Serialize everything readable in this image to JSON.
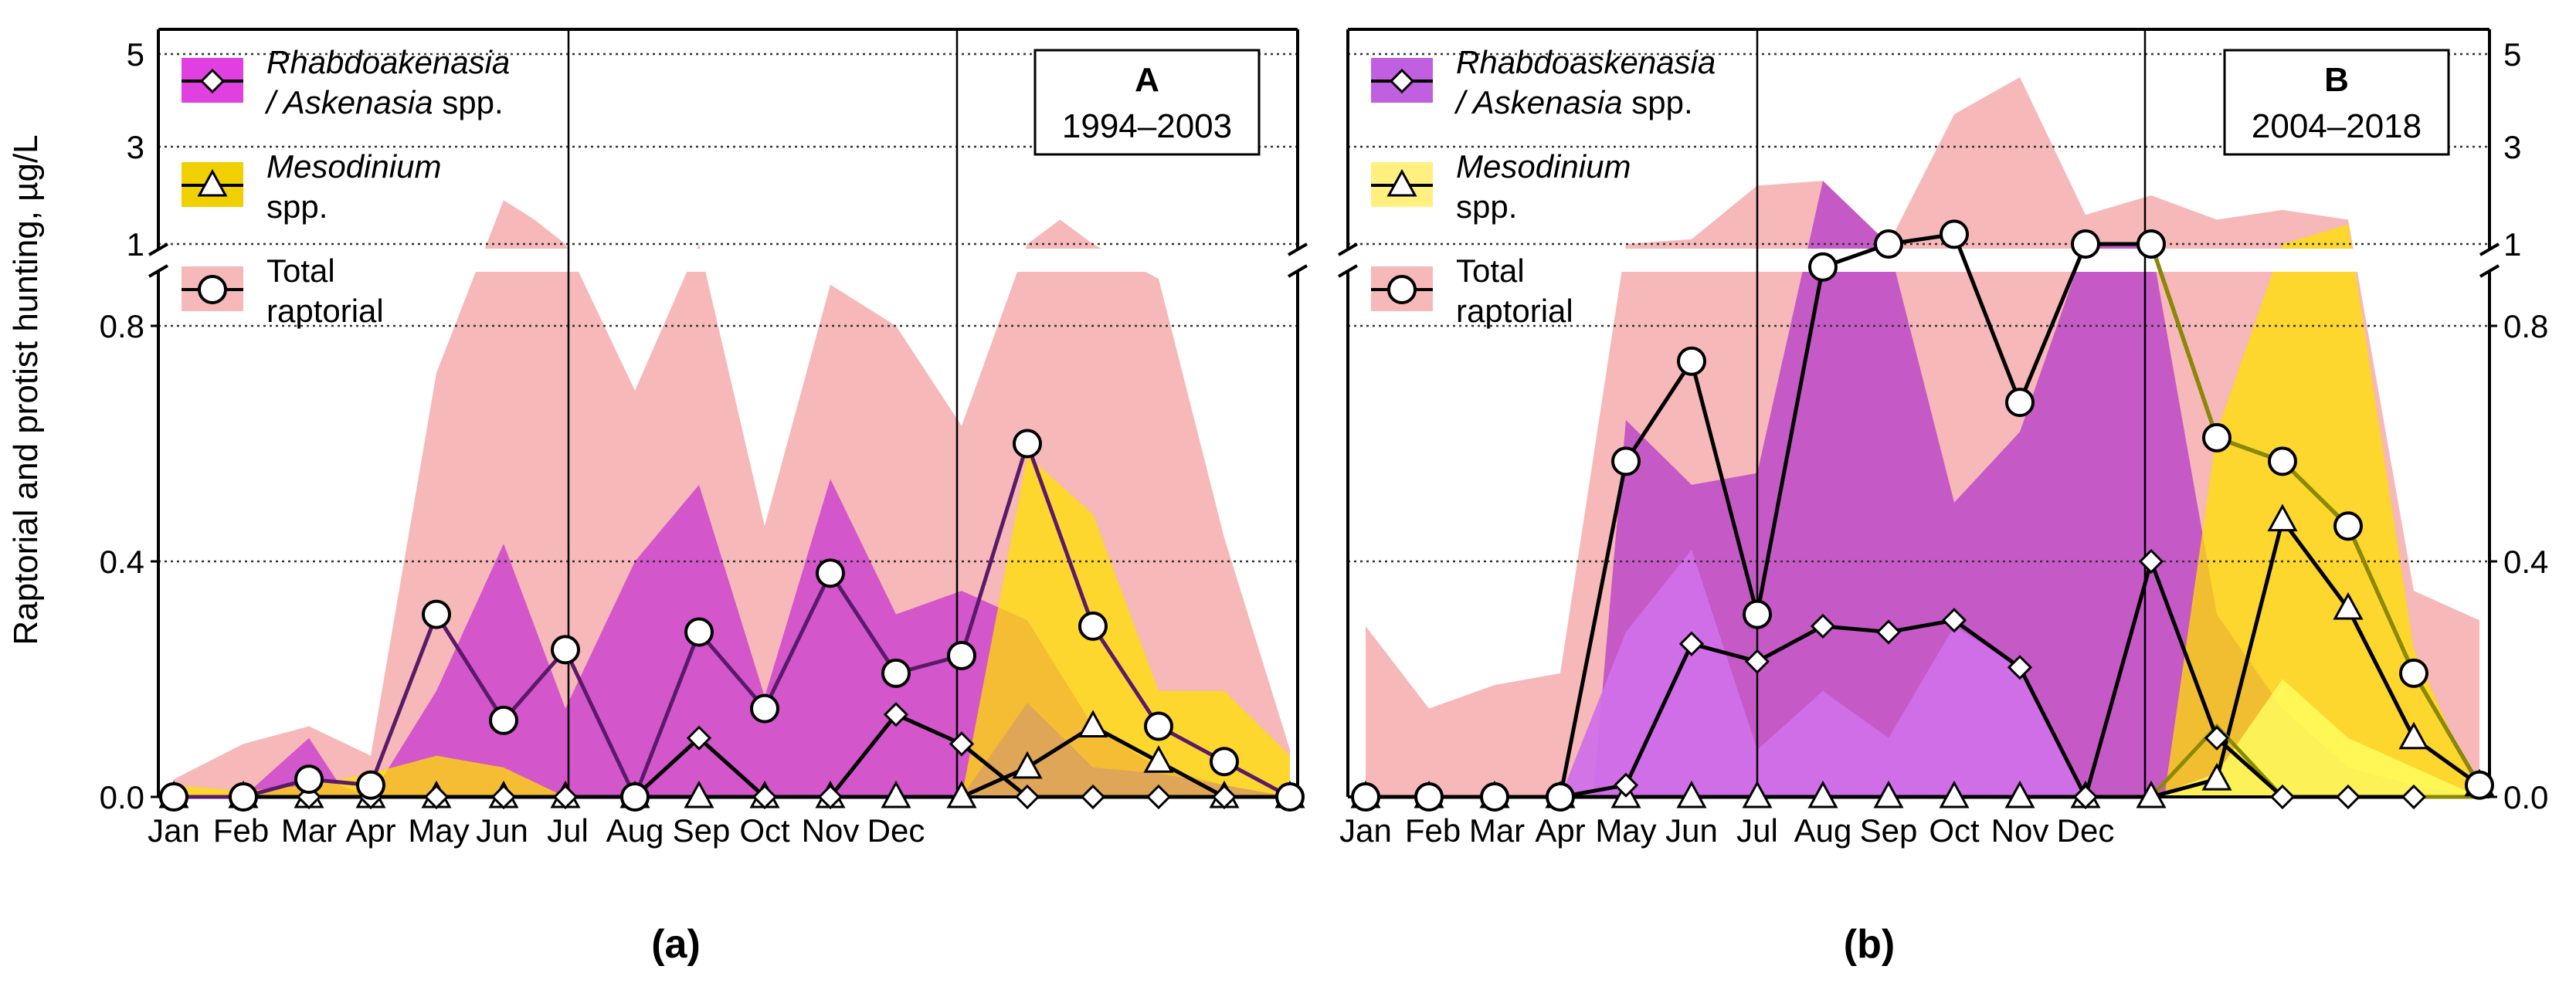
{
  "figure": {
    "ylabel": "Raptorial and protist hunting, µg/L"
  },
  "colors": {
    "total_fill": "#f6b8b8",
    "rhabdo_fill_a": "#cc44cc",
    "rhabdo_fill_b_range": "#d070e8",
    "rhabdo_fill_b_mean": "#c050c8",
    "meso_fill": "#ffe000",
    "meso_fill_b_inner": "#ffff60",
    "total_line": "#000000",
    "rhabdo_line_a": "#5a1a6a",
    "meso_line_b": "#8a8a00"
  },
  "chart_data": [
    {
      "type": "area",
      "panel_label": "(a)",
      "box_title": "A",
      "box_subtitle": "1994–2003",
      "legend": [
        {
          "label_italic": "Rhabdoakenasia",
          "label_rest": "",
          "label_line2_italic": "/ Askenasia",
          "label_line2_rest": " spp.",
          "marker": "diamond",
          "swatch": "magenta"
        },
        {
          "label_italic": "Mesodinium",
          "label_rest": "",
          "label_line2_italic": "",
          "label_line2_rest": "spp.",
          "marker": "triangle",
          "swatch": "yellow"
        },
        {
          "label_italic": "",
          "label_rest": "Total",
          "label_line2_italic": "",
          "label_line2_rest": "raptorial",
          "marker": "circle",
          "swatch": "pink"
        }
      ],
      "x_ticks": [
        "Jan",
        "Feb",
        "Mar",
        "Apr",
        "May",
        "Jun",
        "Jul",
        "Aug",
        "Sep",
        "Oct",
        "Nov",
        "Dec"
      ],
      "y_ticks_lower": [
        "0.0",
        "0.4",
        "0.8"
      ],
      "y_ticks_upper": [
        "1",
        "3",
        "5"
      ],
      "ylim_lower": [
        0,
        0.95
      ],
      "ylim_upper": [
        1,
        5.4
      ],
      "season_lines_x": [
        6.0,
        12.0
      ],
      "total_band": {
        "x": [
          0,
          1,
          2,
          3,
          4,
          5,
          5.5,
          6,
          7,
          8,
          9,
          10,
          11,
          12,
          13,
          13.5,
          14,
          15,
          16,
          17
        ],
        "y": [
          0.03,
          0.09,
          0.12,
          0.07,
          0.72,
          1.9,
          1.5,
          1.0,
          0.69,
          1.0,
          0.46,
          0.87,
          0.8,
          0.63,
          1.0,
          1.5,
          1.0,
          0.88,
          0.44,
          0.08
        ]
      },
      "rhabdo_band": {
        "x": [
          0,
          1,
          2,
          2.5,
          3,
          4,
          5,
          6,
          7,
          8,
          9,
          10,
          11,
          12,
          13,
          14,
          15,
          16,
          17
        ],
        "y": [
          0,
          0,
          0.1,
          0.02,
          0,
          0.18,
          0.43,
          0.15,
          0.4,
          0.53,
          0.17,
          0.54,
          0.31,
          0.35,
          0.3,
          0.12,
          0.05,
          0.02,
          0
        ]
      },
      "meso_band": {
        "x": [
          0,
          1,
          2,
          3,
          4,
          5,
          6,
          7,
          8,
          9,
          10,
          11,
          12,
          13,
          14,
          15,
          16,
          17
        ],
        "y": [
          0.02,
          0.01,
          0.02,
          0.04,
          0.07,
          0.05,
          0,
          0,
          0,
          0,
          0,
          0,
          0,
          0.58,
          0.48,
          0.18,
          0.18,
          0.07
        ]
      },
      "meso_band_inner": {
        "x": [
          12,
          13,
          14,
          15,
          16,
          17
        ],
        "y": [
          0,
          0.16,
          0.05,
          0.04,
          0.02,
          0
        ]
      },
      "total_series": {
        "x": [
          0,
          1,
          2,
          3,
          4,
          5,
          6,
          7,
          8,
          9,
          10,
          11,
          12,
          13,
          14,
          15,
          16,
          17
        ],
        "y": [
          0,
          0,
          0.03,
          0.02,
          0.31,
          0.13,
          0.25,
          0,
          0.28,
          0.15,
          0.38,
          0.21,
          0.24,
          0.6,
          0.29,
          0.12,
          0.06,
          0
        ]
      },
      "rhabdo_series": {
        "x": [
          0,
          1,
          2,
          3,
          4,
          5,
          6,
          7,
          8,
          9,
          10,
          11,
          12,
          13,
          14,
          15,
          16,
          17
        ],
        "y": [
          0,
          0,
          0,
          0,
          0,
          0,
          0,
          0,
          0.1,
          0,
          0,
          0.14,
          0.09,
          0,
          0,
          0,
          0,
          0
        ]
      },
      "meso_series": {
        "x": [
          0,
          1,
          2,
          3,
          4,
          5,
          6,
          7,
          8,
          9,
          10,
          11,
          12,
          13,
          14,
          15,
          16,
          17
        ],
        "y": [
          0,
          0,
          0,
          0,
          0,
          0,
          0,
          0,
          0,
          0,
          0,
          0,
          0,
          0.05,
          0.12,
          0.06,
          0,
          0
        ]
      }
    },
    {
      "type": "area",
      "panel_label": "(b)",
      "box_title": "B",
      "box_subtitle": "2004–2018",
      "legend": [
        {
          "label_italic": "Rhabdoaskenasia",
          "label_rest": "",
          "label_line2_italic": "/ Askenasia",
          "label_line2_rest": " spp.",
          "marker": "diamond",
          "swatch": "purple"
        },
        {
          "label_italic": "Mesodinium",
          "label_rest": "",
          "label_line2_italic": "",
          "label_line2_rest": "spp.",
          "marker": "triangle",
          "swatch": "lightyellow"
        },
        {
          "label_italic": "",
          "label_rest": "Total",
          "label_line2_italic": "",
          "label_line2_rest": "raptorial",
          "marker": "circle",
          "swatch": "pink"
        }
      ],
      "x_ticks": [
        "Jan",
        "Feb",
        "Mar",
        "Apr",
        "May",
        "Jun",
        "Jul",
        "Aug",
        "Sep",
        "Oct",
        "Nov",
        "Dec"
      ],
      "y_ticks_lower": [
        "0.0",
        "0.4",
        "0.8"
      ],
      "y_ticks_upper": [
        "1",
        "3",
        "5"
      ],
      "ylim_lower": [
        0,
        0.95
      ],
      "ylim_upper": [
        1,
        5.4
      ],
      "season_lines_x": [
        6.0,
        12.0
      ],
      "total_band": {
        "x": [
          0,
          1,
          2,
          3,
          4,
          5,
          6,
          7,
          8,
          9,
          10,
          11,
          12,
          13,
          14,
          15,
          16,
          17
        ],
        "y": [
          0.29,
          0.15,
          0.19,
          0.21,
          1.0,
          1.1,
          2.2,
          2.3,
          1.0,
          3.7,
          4.5,
          1.6,
          2.0,
          1.5,
          1.7,
          1.5,
          0.35,
          0.3
        ]
      },
      "rhabdo_band": {
        "x": [
          0,
          1,
          2,
          3,
          3.5,
          4,
          5,
          6,
          7,
          8,
          9,
          10,
          11,
          12,
          13,
          14,
          15,
          16,
          17
        ],
        "y": [
          0,
          0,
          0,
          0,
          0,
          0.64,
          0.53,
          0.55,
          2.3,
          1.0,
          0.5,
          0.62,
          1.0,
          1.0,
          0.31,
          0.15,
          0.05,
          0.02,
          0
        ]
      },
      "rhabdo_band_inner": {
        "x": [
          3,
          4,
          5,
          6,
          7,
          8,
          9,
          10,
          11,
          12,
          13,
          14,
          15,
          16,
          17
        ],
        "y": [
          0,
          0.28,
          0.42,
          0.08,
          0.18,
          0.1,
          0.29,
          0.22,
          0,
          0,
          0,
          0,
          0,
          0,
          0
        ]
      },
      "meso_band": {
        "x": [
          12,
          12.2,
          13,
          14,
          15,
          16,
          17
        ],
        "y": [
          0,
          0,
          0.62,
          1.0,
          1.4,
          0.25,
          0
        ]
      },
      "meso_band_inner": {
        "x": [
          12,
          13,
          14,
          15,
          16,
          17
        ],
        "y": [
          0,
          0.04,
          0.2,
          0.1,
          0.05,
          0
        ]
      },
      "total_series": {
        "x": [
          0,
          1,
          2,
          3,
          4,
          5,
          6,
          7,
          8,
          9,
          10,
          11,
          12,
          13,
          14,
          15,
          16,
          17
        ],
        "y": [
          0,
          0,
          0,
          0,
          0.57,
          0.74,
          0.31,
          0.9,
          1.0,
          1.2,
          0.67,
          1.0,
          1.0,
          0.61,
          0.57,
          0.46,
          0.21,
          0.02
        ]
      },
      "rhabdo_series": {
        "x": [
          0,
          1,
          2,
          3,
          4,
          5,
          6,
          7,
          8,
          9,
          10,
          11,
          12,
          13,
          14,
          15,
          16
        ],
        "y": [
          0,
          0,
          0,
          0,
          0.02,
          0.26,
          0.23,
          0.29,
          0.28,
          0.3,
          0.22,
          0,
          0.4,
          0.1,
          0,
          0,
          0
        ]
      },
      "meso_series": {
        "x": [
          0,
          1,
          2,
          3,
          4,
          5,
          6,
          7,
          8,
          9,
          10,
          11,
          12,
          13,
          14,
          15,
          16,
          17
        ],
        "y": [
          0,
          0,
          0,
          0,
          0,
          0,
          0,
          0,
          0,
          0,
          0,
          0,
          0,
          0.03,
          0.47,
          0.32,
          0.1,
          0.02
        ]
      },
      "meso_mean_line": {
        "x": [
          12,
          13,
          14,
          15,
          16,
          17
        ],
        "y": [
          0,
          0.12,
          0,
          0,
          0,
          0
        ]
      }
    }
  ]
}
